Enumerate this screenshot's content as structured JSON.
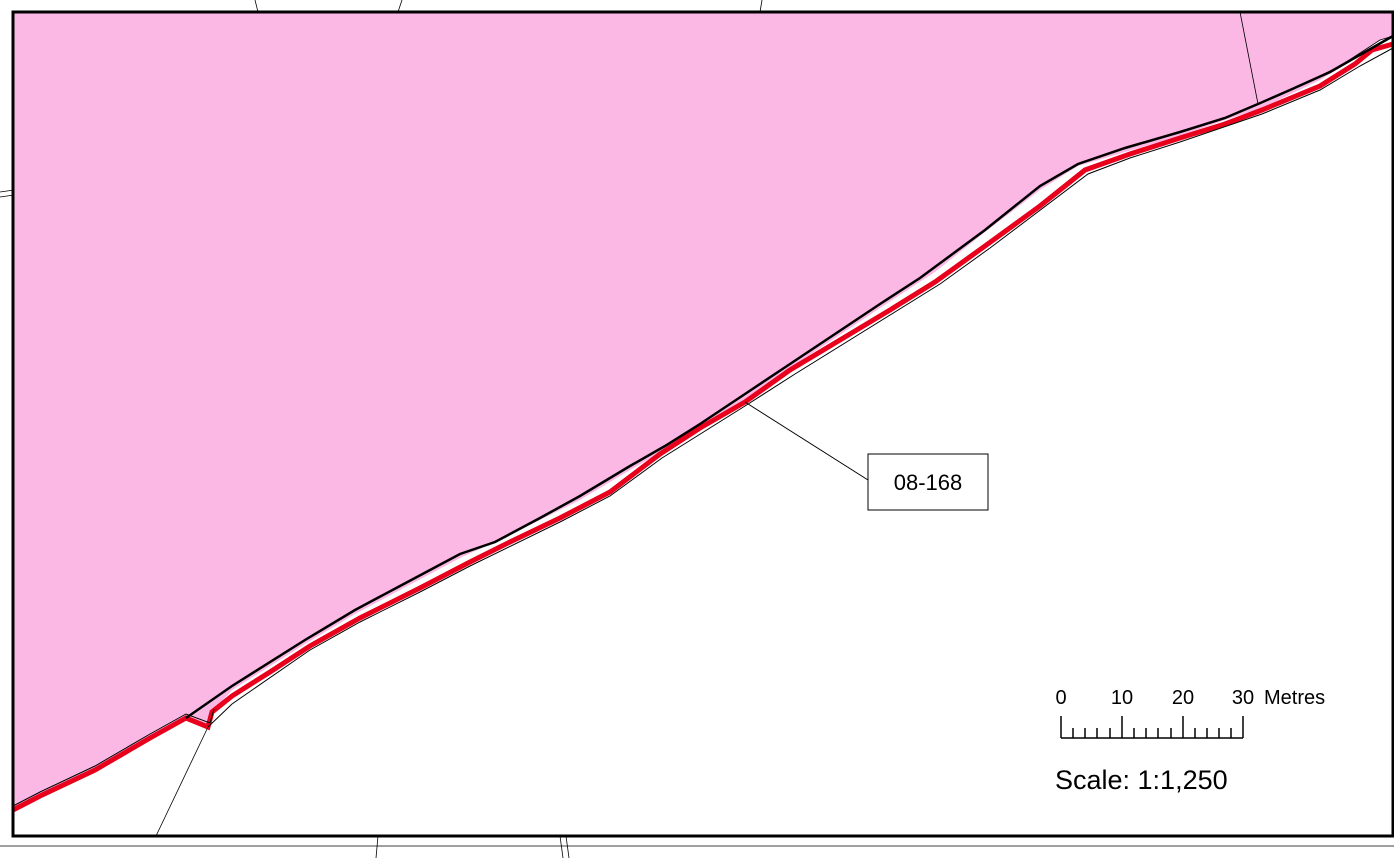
{
  "map": {
    "parcel_label": "08-168",
    "scale_bar": {
      "ticks": [
        "0",
        "10",
        "20",
        "30"
      ],
      "unit": "Metres",
      "scale_text": "Scale: 1:1,250"
    },
    "colors": {
      "parcel_fill": "#fbb8e4",
      "boundary_red": "#e8001c",
      "outline": "#000000",
      "background": "#ffffff"
    }
  }
}
